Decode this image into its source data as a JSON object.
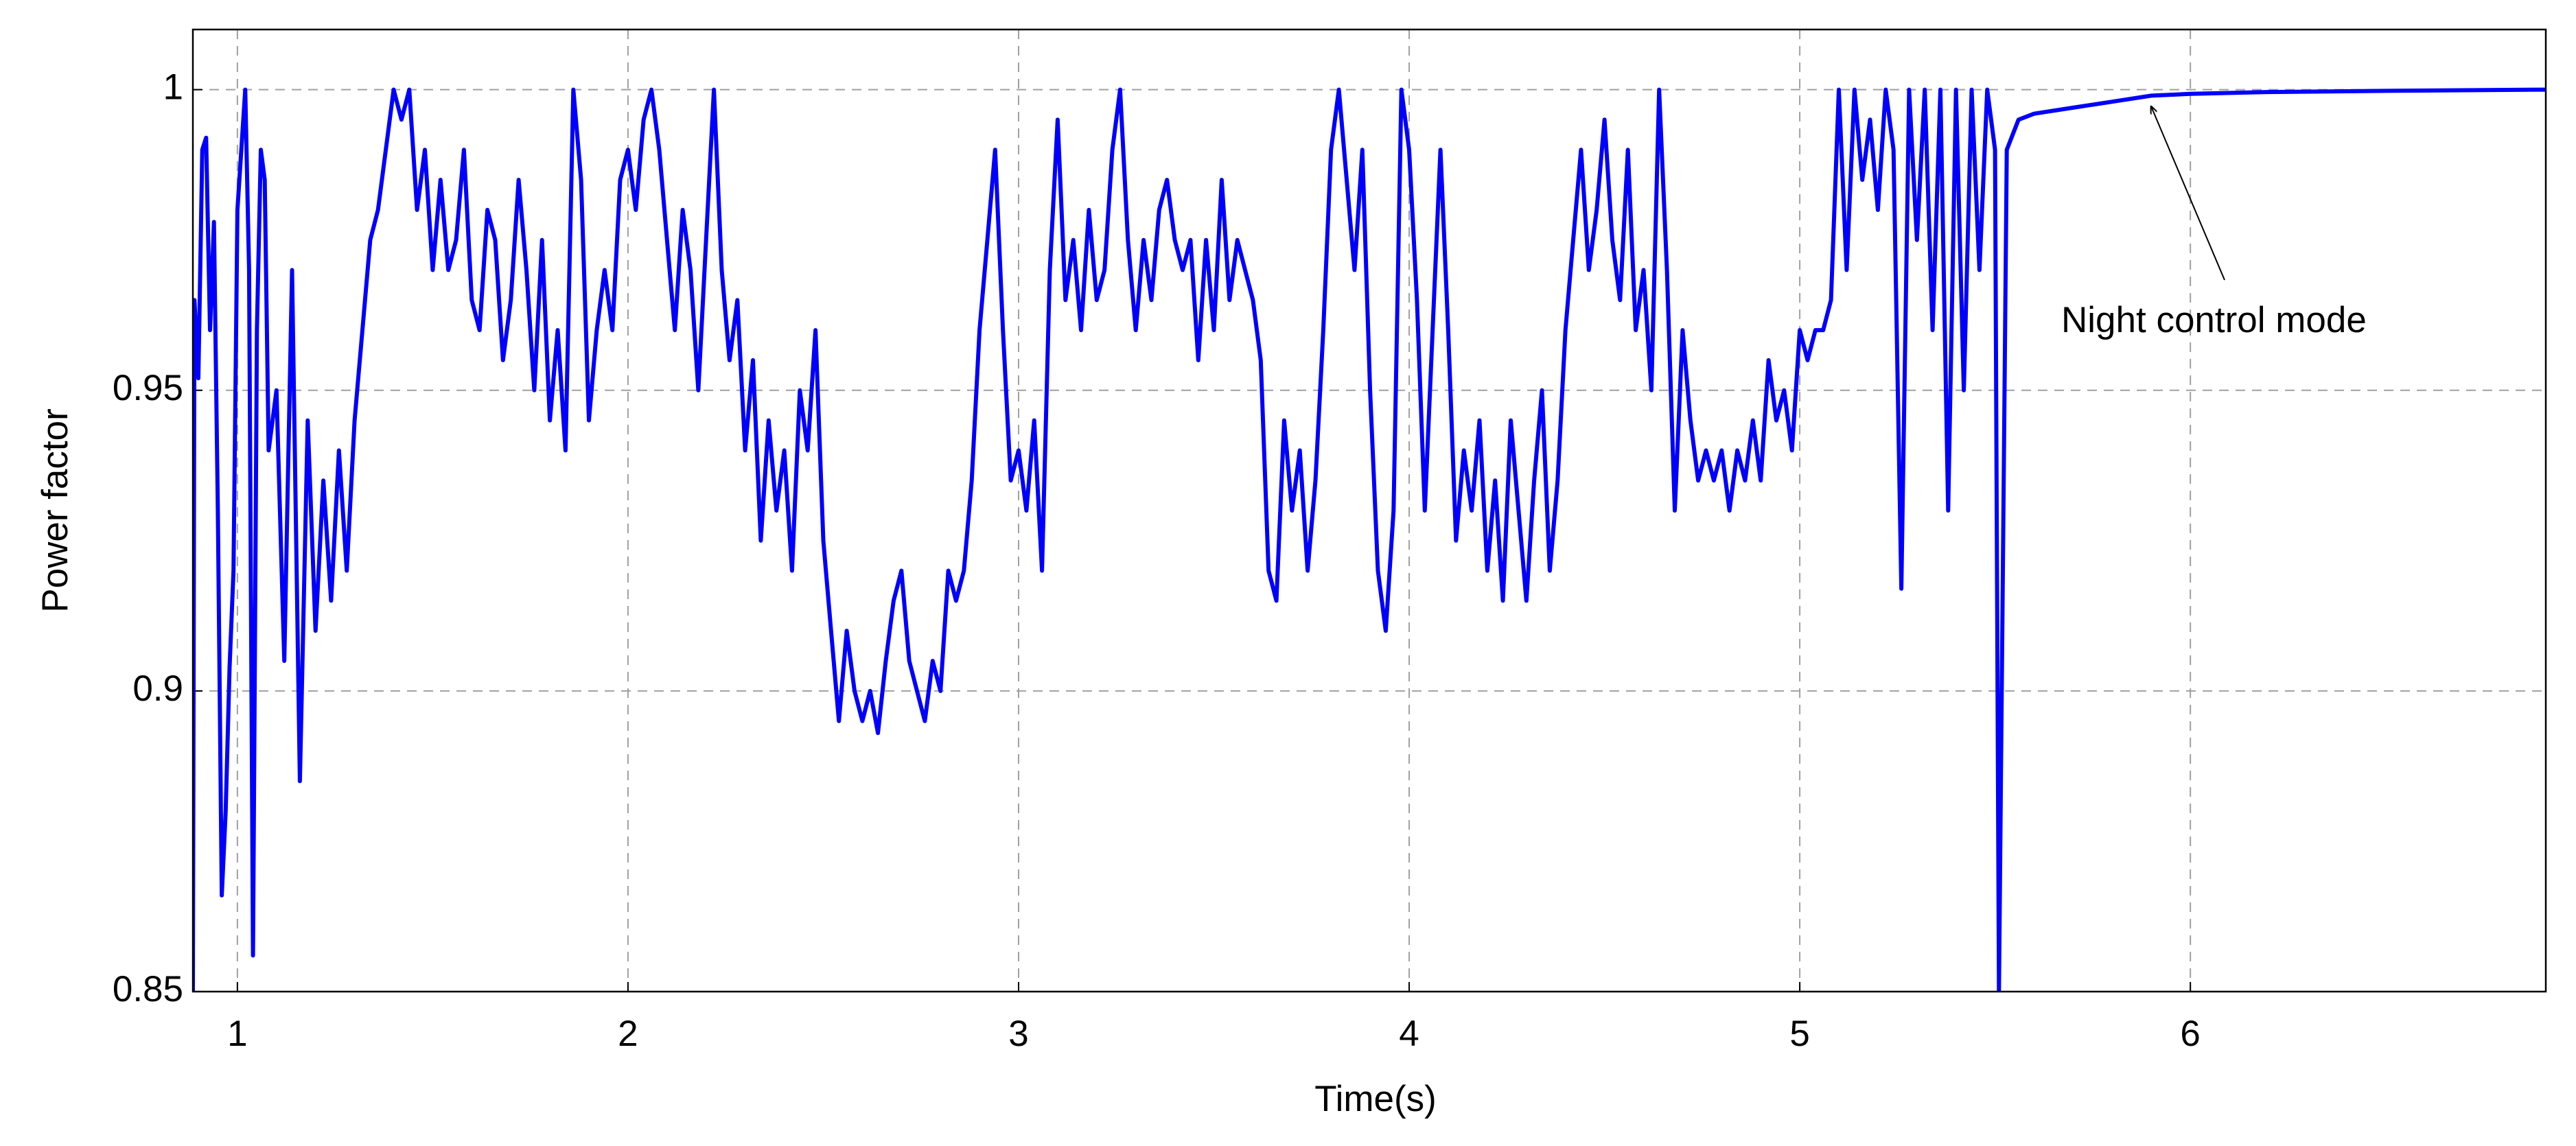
{
  "chart_data": {
    "type": "line",
    "xlabel": "Time(s)",
    "ylabel": "Power factor",
    "annotations": [
      {
        "text": "Night control mode"
      }
    ],
    "color": "#0000ff",
    "grid": true,
    "xlim": [
      0.886,
      6.91
    ],
    "ylim": [
      0.85,
      1.01
    ],
    "xticks": [
      1,
      2,
      3,
      4,
      5,
      6
    ],
    "yticks": [
      0.85,
      0.9,
      0.95,
      1
    ],
    "x": [
      0.886,
      0.89,
      0.9,
      0.91,
      0.92,
      0.93,
      0.94,
      0.95,
      0.96,
      0.97,
      0.98,
      0.99,
      1,
      1.01,
      1.02,
      1.03,
      1.04,
      1.05,
      1.06,
      1.07,
      1.08,
      1.1,
      1.12,
      1.14,
      1.16,
      1.18,
      1.2,
      1.22,
      1.24,
      1.26,
      1.28,
      1.3,
      1.32,
      1.34,
      1.36,
      1.38,
      1.4,
      1.42,
      1.44,
      1.46,
      1.48,
      1.5,
      1.52,
      1.54,
      1.56,
      1.58,
      1.6,
      1.62,
      1.64,
      1.66,
      1.68,
      1.7,
      1.72,
      1.74,
      1.76,
      1.78,
      1.8,
      1.82,
      1.84,
      1.86,
      1.88,
      1.9,
      1.92,
      1.94,
      1.96,
      1.98,
      2,
      2.02,
      2.04,
      2.06,
      2.08,
      2.1,
      2.12,
      2.14,
      2.16,
      2.18,
      2.2,
      2.22,
      2.24,
      2.26,
      2.28,
      2.3,
      2.32,
      2.34,
      2.36,
      2.38,
      2.4,
      2.42,
      2.44,
      2.46,
      2.48,
      2.5,
      2.52,
      2.54,
      2.56,
      2.58,
      2.6,
      2.62,
      2.64,
      2.66,
      2.68,
      2.7,
      2.72,
      2.74,
      2.76,
      2.78,
      2.8,
      2.82,
      2.84,
      2.86,
      2.88,
      2.9,
      2.92,
      2.94,
      2.96,
      2.98,
      3,
      3.02,
      3.04,
      3.06,
      3.08,
      3.1,
      3.12,
      3.14,
      3.16,
      3.18,
      3.2,
      3.22,
      3.24,
      3.26,
      3.28,
      3.3,
      3.32,
      3.34,
      3.36,
      3.38,
      3.4,
      3.42,
      3.44,
      3.46,
      3.48,
      3.5,
      3.52,
      3.54,
      3.56,
      3.58,
      3.6,
      3.62,
      3.64,
      3.66,
      3.68,
      3.7,
      3.72,
      3.74,
      3.76,
      3.78,
      3.8,
      3.82,
      3.84,
      3.86,
      3.88,
      3.9,
      3.92,
      3.94,
      3.96,
      3.98,
      4,
      4.02,
      4.04,
      4.06,
      4.08,
      4.1,
      4.12,
      4.14,
      4.16,
      4.18,
      4.2,
      4.22,
      4.24,
      4.26,
      4.28,
      4.3,
      4.32,
      4.34,
      4.36,
      4.38,
      4.4,
      4.42,
      4.44,
      4.46,
      4.48,
      4.5,
      4.52,
      4.54,
      4.56,
      4.58,
      4.6,
      4.62,
      4.64,
      4.66,
      4.68,
      4.7,
      4.72,
      4.74,
      4.76,
      4.78,
      4.8,
      4.82,
      4.84,
      4.86,
      4.88,
      4.9,
      4.92,
      4.94,
      4.96,
      4.98,
      5,
      5.02,
      5.04,
      5.06,
      5.08,
      5.1,
      5.12,
      5.14,
      5.16,
      5.18,
      5.2,
      5.22,
      5.24,
      5.26,
      5.28,
      5.3,
      5.32,
      5.34,
      5.36,
      5.38,
      5.4,
      5.42,
      5.44,
      5.46,
      5.48,
      5.5,
      5.51,
      5.53,
      5.56,
      5.6,
      5.7,
      5.8,
      5.9,
      6,
      6.2,
      6.5,
      6.91
    ],
    "values": [
      0.85,
      0.965,
      0.952,
      0.99,
      0.992,
      0.96,
      0.978,
      0.93,
      0.866,
      0.88,
      0.904,
      0.92,
      0.98,
      0.99,
      1,
      0.97,
      0.856,
      0.96,
      0.99,
      0.985,
      0.94,
      0.95,
      0.905,
      0.97,
      0.885,
      0.945,
      0.91,
      0.935,
      0.915,
      0.94,
      0.92,
      0.945,
      0.96,
      0.975,
      0.98,
      0.99,
      1,
      0.995,
      1,
      0.98,
      0.99,
      0.97,
      0.985,
      0.97,
      0.975,
      0.99,
      0.965,
      0.96,
      0.98,
      0.975,
      0.955,
      0.965,
      0.985,
      0.97,
      0.95,
      0.975,
      0.945,
      0.96,
      0.94,
      1,
      0.985,
      0.945,
      0.96,
      0.97,
      0.96,
      0.985,
      0.99,
      0.98,
      0.995,
      1,
      0.99,
      0.975,
      0.96,
      0.98,
      0.97,
      0.95,
      0.975,
      1,
      0.97,
      0.955,
      0.965,
      0.94,
      0.955,
      0.925,
      0.945,
      0.93,
      0.94,
      0.92,
      0.95,
      0.94,
      0.96,
      0.925,
      0.91,
      0.895,
      0.91,
      0.9,
      0.895,
      0.9,
      0.893,
      0.905,
      0.915,
      0.92,
      0.905,
      0.9,
      0.895,
      0.905,
      0.9,
      0.92,
      0.915,
      0.92,
      0.935,
      0.96,
      0.975,
      0.99,
      0.96,
      0.935,
      0.94,
      0.93,
      0.945,
      0.92,
      0.97,
      0.995,
      0.965,
      0.975,
      0.96,
      0.98,
      0.965,
      0.97,
      0.99,
      1,
      0.975,
      0.96,
      0.975,
      0.965,
      0.98,
      0.985,
      0.975,
      0.97,
      0.975,
      0.955,
      0.975,
      0.96,
      0.985,
      0.965,
      0.975,
      0.97,
      0.965,
      0.955,
      0.92,
      0.915,
      0.945,
      0.93,
      0.94,
      0.92,
      0.935,
      0.96,
      0.99,
      1,
      0.985,
      0.97,
      0.99,
      0.95,
      0.92,
      0.91,
      0.93,
      1,
      0.99,
      0.965,
      0.93,
      0.96,
      0.99,
      0.96,
      0.925,
      0.94,
      0.93,
      0.945,
      0.92,
      0.935,
      0.915,
      0.945,
      0.93,
      0.915,
      0.935,
      0.95,
      0.92,
      0.935,
      0.96,
      0.975,
      0.99,
      0.97,
      0.98,
      0.995,
      0.975,
      0.965,
      0.99,
      0.96,
      0.97,
      0.95,
      1,
      0.97,
      0.93,
      0.96,
      0.945,
      0.935,
      0.94,
      0.935,
      0.94,
      0.93,
      0.94,
      0.935,
      0.945,
      0.935,
      0.955,
      0.945,
      0.95,
      0.94,
      0.96,
      0.955,
      0.96,
      0.96,
      0.965,
      1,
      0.97,
      1,
      0.985,
      0.995,
      0.98,
      1,
      0.99,
      0.917,
      1,
      0.975,
      1,
      0.96,
      1,
      0.93,
      1,
      0.95,
      1,
      0.97,
      1,
      0.99,
      0.85,
      0.99,
      0.995,
      0.996,
      0.997,
      0.998,
      0.999,
      0.9993,
      0.9996,
      0.9998,
      1
    ]
  }
}
